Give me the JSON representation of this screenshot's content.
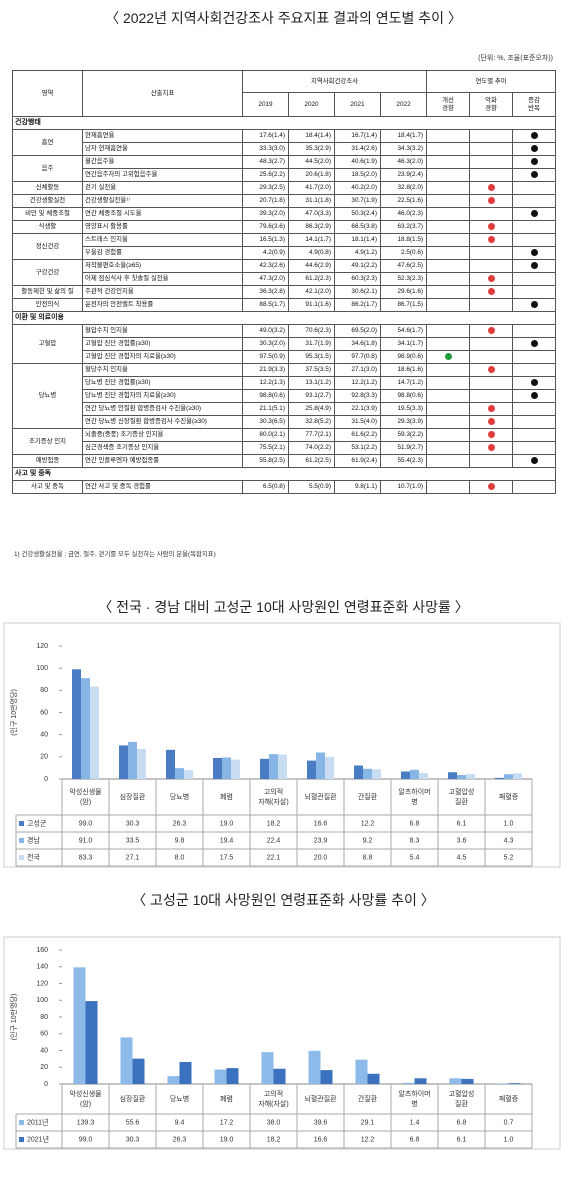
{
  "indicator_table": {
    "title": "〈 2022년 지역사회건강조사 주요지표 결과의 연도별 추이 〉",
    "unit": "(단위: %, 조율(표준오차))",
    "header": {
      "area": "영역",
      "indicator": "산출지표",
      "survey": "지역사회건강조사",
      "years": [
        "2019",
        "2020",
        "2021",
        "2022"
      ],
      "trend": "연도별 추이",
      "trend_cols": [
        "개선\n경향",
        "악화\n경향",
        "증감\n반복"
      ],
      "trend_colors": [
        "#1f9a3c",
        "#e23b3b",
        "#111111"
      ]
    },
    "groups": [
      {
        "section": "건강행태",
        "areas": [
          {
            "area": "흡연",
            "rows": [
              {
                "indicator": "현재흡연율",
                "values": [
                  "17.6(1.4)",
                  "18.4(1.4)",
                  "16.7(1.4)",
                  "18.4(1.7)"
                ],
                "trend": 2
              },
              {
                "indicator": "남자 현재흡연율",
                "values": [
                  "33.3(3.0)",
                  "35.3(2.9)",
                  "31.4(2.6)",
                  "34.3(3.2)"
                ],
                "trend": 2
              }
            ]
          },
          {
            "area": "음주",
            "rows": [
              {
                "indicator": "월간음주율",
                "values": [
                  "48.3(2.7)",
                  "44.5(2.0)",
                  "40.6(1.9)",
                  "46.3(2.0)"
                ],
                "trend": 2
              },
              {
                "indicator": "연간음주자의 고위험음주율",
                "values": [
                  "25.6(2.2)",
                  "20.6(1.8)",
                  "18.5(2.0)",
                  "23.9(2.4)"
                ],
                "trend": 2
              }
            ]
          },
          {
            "area": "신체활동",
            "rows": [
              {
                "indicator": "걷기 실천율",
                "values": [
                  "29.3(2.5)",
                  "41.7(2.0)",
                  "40.2(2.0)",
                  "32.8(2.0)"
                ],
                "trend": 1
              }
            ]
          },
          {
            "area": "건강생활실천",
            "rows": [
              {
                "indicator": "건강생활실천율¹⁾",
                "values": [
                  "20.7(1.8)",
                  "31.1(1.8)",
                  "30.7(1.9)",
                  "22.5(1.6)"
                ],
                "trend": 1
              }
            ]
          },
          {
            "area": "비만 및 체중조절",
            "rows": [
              {
                "indicator": "연간 체중조절 시도율",
                "values": [
                  "39.3(2.0)",
                  "47.0(3.3)",
                  "50.3(2.4)",
                  "46.0(2.3)"
                ],
                "trend": 2
              }
            ]
          },
          {
            "area": "식생활",
            "rows": [
              {
                "indicator": "영양표시 활용률",
                "values": [
                  "79.6(3.6)",
                  "86.3(2.9)",
                  "66.5(3.8)",
                  "63.2(3.7)"
                ],
                "trend": 1
              }
            ]
          },
          {
            "area": "정신건강",
            "rows": [
              {
                "indicator": "스트레스 인지율",
                "values": [
                  "16.5(1.3)",
                  "14.1(1.7)",
                  "18.1(1.4)",
                  "18.8(1.5)"
                ],
                "trend": 1
              },
              {
                "indicator": "우울감 경험률",
                "values": [
                  "4.2(0.9)",
                  "4.9(0.8)",
                  "4.9(1.2)",
                  "2.5(0.6)"
                ],
                "trend": 2
              }
            ]
          },
          {
            "area": "구강건강",
            "rows": [
              {
                "indicator": "저작불편호소율(≥65)",
                "values": [
                  "42.3(2.6)",
                  "44.6(2.9)",
                  "49.1(2.2)",
                  "47.6(2.5)"
                ],
                "trend": 2
              },
              {
                "indicator": "어제 점심식사 후 칫솔질 실천율",
                "values": [
                  "47.3(2.0)",
                  "61.2(2.3)",
                  "60.3(2.3)",
                  "52.3(2.3)"
                ],
                "trend": 1
              }
            ]
          },
          {
            "area": "활동제한 및 삶의 질",
            "rows": [
              {
                "indicator": "주관적 건강인지율",
                "values": [
                  "36.3(2.8)",
                  "42.1(2.0)",
                  "30.6(2.1)",
                  "29.6(1.6)"
                ],
                "trend": 1
              }
            ]
          },
          {
            "area": "안전의식",
            "rows": [
              {
                "indicator": "운전자의 안전벨트 착용률",
                "values": [
                  "88.5(1.7)",
                  "91.1(1.6)",
                  "86.2(1.7)",
                  "86.7(1.5)"
                ],
                "trend": 2
              }
            ]
          }
        ]
      },
      {
        "section": "이환 및 의료이용",
        "areas": [
          {
            "area": "고혈압",
            "rows": [
              {
                "indicator": "혈압수치 인지율",
                "values": [
                  "49.0(3.2)",
                  "70.6(2.3)",
                  "69.5(2.0)",
                  "54.6(1.7)"
                ],
                "trend": 1
              },
              {
                "indicator": "고혈압 진단 경험률(≥30)",
                "values": [
                  "30.3(2.0)",
                  "31.7(1.9)",
                  "34.6(1.8)",
                  "34.1(1.7)"
                ],
                "trend": 2
              },
              {
                "indicator": "고혈압 진단 경험자의 치료율(≥30)",
                "values": [
                  "97.5(0.9)",
                  "95.3(1.5)",
                  "97.7(0.8)",
                  "98.9(0.6)"
                ],
                "trend": 0
              }
            ]
          },
          {
            "area": "당뇨병",
            "rows": [
              {
                "indicator": "혈당수치 인지율",
                "values": [
                  "21.9(3.3)",
                  "37.5(3.5)",
                  "27.1(3.0)",
                  "18.6(1.6)"
                ],
                "trend": 1
              },
              {
                "indicator": "당뇨병 진단 경험률(≥30)",
                "values": [
                  "12.2(1.3)",
                  "13.1(1.2)",
                  "12.2(1.2)",
                  "14.7(1.2)"
                ],
                "trend": 2
              },
              {
                "indicator": "당뇨병 진단 경험자의 치료율(≥30)",
                "values": [
                  "98.8(0.6)",
                  "93.1(2.7)",
                  "92.8(3.3)",
                  "98.8(0.6)"
                ],
                "trend": 2
              },
              {
                "indicator": "연간 당뇨병 안질환 합병증검사 수진율(≥30)",
                "values": [
                  "21.1(5.1)",
                  "25.8(4.9)",
                  "22.1(3.9)",
                  "19.5(3.3)"
                ],
                "trend": 1
              },
              {
                "indicator": "연간 당뇨병 신장질환 합병증검사 수진율(≥30)",
                "values": [
                  "30.3(6.5)",
                  "32.8(5.2)",
                  "31.5(4.0)",
                  "29.3(3.9)"
                ],
                "trend": 1
              }
            ]
          },
          {
            "area": "조기증상 인지",
            "rows": [
              {
                "indicator": "뇌졸중(중풍) 조기증상 인지율",
                "values": [
                  "80.0(2.1)",
                  "77.7(2.1)",
                  "61.6(2.2)",
                  "59.3(2.2)"
                ],
                "trend": 1
              },
              {
                "indicator": "심근경색증 조기증상 인지율",
                "values": [
                  "75.5(2.1)",
                  "74.0(2.2)",
                  "53.1(2.2)",
                  "51.9(2.7)"
                ],
                "trend": 1
              }
            ]
          },
          {
            "area": "예방접종",
            "rows": [
              {
                "indicator": "연간 인플루엔자 예방접종률",
                "values": [
                  "55.8(2.5)",
                  "61.2(2.5)",
                  "61.9(2.4)",
                  "55.4(2.3)"
                ],
                "trend": 2
              }
            ]
          }
        ]
      },
      {
        "section": "사고 및 중독",
        "areas": [
          {
            "area": "사고 및 중독",
            "rows": [
              {
                "indicator": "연간 사고 및 중독 경험률",
                "values": [
                  "6.5(0.8)",
                  "5.5(0.9)",
                  "9.8(1.1)",
                  "10.7(1.0)"
                ],
                "trend": 1
              }
            ]
          }
        ]
      }
    ],
    "footnote": "1) 건강생활실천율 : 금연, 절주, 걷기를 모두 실천하는 사람의 분율(복합지표)"
  },
  "chart_data": [
    {
      "type": "bar",
      "title": "〈 전국 · 경남 대비 고성군 10대 사망원인 연령표준화 사망률 〉",
      "ylabel": "(인구 10만명당)",
      "categories": [
        "악성신생물\n(암)",
        "심장질환",
        "당뇨병",
        "폐렴",
        "고의적\n자해(자살)",
        "뇌혈관질환",
        "간질환",
        "알츠하이머\n병",
        "고혈압성\n질환",
        "패혈증"
      ],
      "series": [
        {
          "name": "고성군",
          "color": "#4a7cc4",
          "values": [
            99.0,
            30.3,
            26.3,
            19.0,
            18.2,
            16.6,
            12.2,
            6.8,
            6.1,
            1.0
          ],
          "value_labels": [
            "99.0",
            "30.3",
            "26.3",
            "19.0",
            "18.2",
            "16.6",
            "12.2",
            "6.8",
            "6.1",
            "1.0"
          ]
        },
        {
          "name": "경남",
          "color": "#86b5e6",
          "values": [
            91.0,
            33.5,
            9.8,
            19.4,
            22.4,
            23.9,
            9.2,
            8.3,
            3.6,
            4.3
          ],
          "value_labels": [
            "91.0",
            "33.5",
            "9.8",
            "19.4",
            "22.4",
            "23.9",
            "9.2",
            "8.3",
            "3.6",
            "4.3"
          ]
        },
        {
          "name": "전국",
          "color": "#c9ddf2",
          "values": [
            83.3,
            27.1,
            8.0,
            17.5,
            22.1,
            20.0,
            8.8,
            5.4,
            4.5,
            5.2
          ],
          "value_labels": [
            "83.3",
            "27.1",
            "8.0",
            "17.5",
            "22.1",
            "20.0",
            "8.8",
            "5.4",
            "4.5",
            "5.2"
          ]
        }
      ],
      "ylim": [
        0,
        120
      ],
      "yticks": [
        0,
        20,
        40,
        60,
        80,
        100,
        120
      ],
      "grid": false
    },
    {
      "type": "bar",
      "title": "〈 고성군 10대 사망원인 연령표준화 사망률 추이 〉",
      "ylabel": "(인구 10만명당)",
      "categories": [
        "악성신생물\n(암)",
        "심장질환",
        "당뇨병",
        "폐렴",
        "고의적\n자해(자살)",
        "뇌혈관질환",
        "간질환",
        "알츠하이머\n병",
        "고혈압성\n질환",
        "패혈증"
      ],
      "series": [
        {
          "name": "2011년",
          "color": "#8dbae9",
          "values": [
            139.3,
            55.6,
            9.4,
            17.2,
            38.0,
            39.6,
            29.1,
            1.4,
            6.8,
            0.7
          ],
          "value_labels": [
            "139.3",
            "55.6",
            "9.4",
            "17.2",
            "38.0",
            "39.6",
            "29.1",
            "1.4",
            "6.8",
            "0.7"
          ]
        },
        {
          "name": "2021년",
          "color": "#3b72bf",
          "values": [
            99.0,
            30.3,
            26.3,
            19.0,
            18.2,
            16.6,
            12.2,
            6.8,
            6.1,
            1.0
          ],
          "value_labels": [
            "99.0",
            "30.3",
            "26.3",
            "19.0",
            "18.2",
            "16.6",
            "12.2",
            "6.8",
            "6.1",
            "1.0"
          ]
        }
      ],
      "ylim": [
        0,
        160
      ],
      "yticks": [
        0,
        20,
        40,
        60,
        80,
        100,
        120,
        140,
        160
      ],
      "grid": false
    }
  ]
}
